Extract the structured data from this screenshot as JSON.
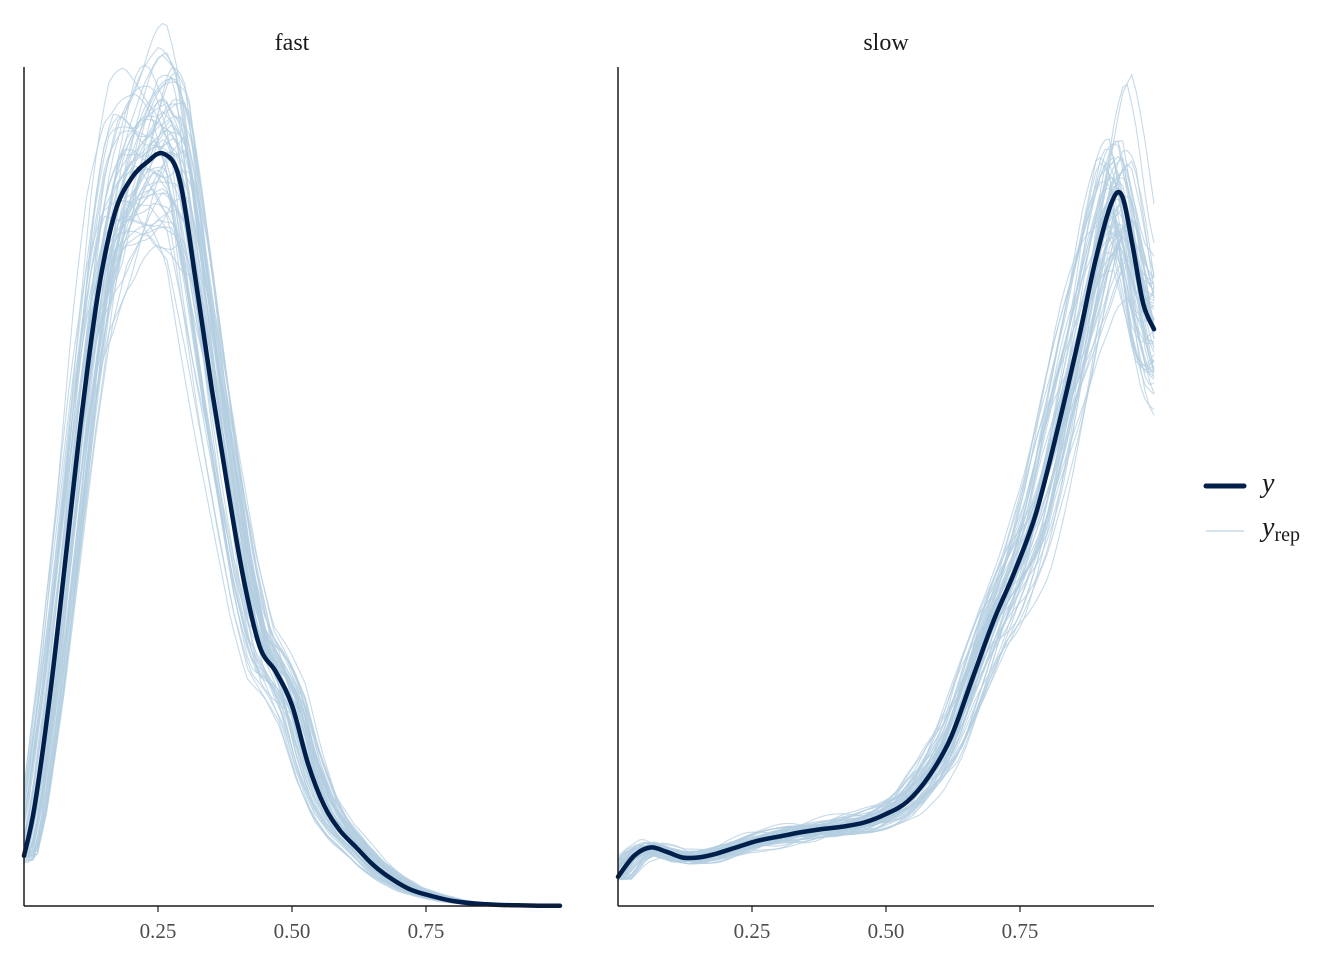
{
  "chart_data": [
    {
      "type": "line",
      "panel": "fast",
      "xticks": [
        0.25,
        0.5,
        0.75
      ],
      "xtick_labels": [
        "0.25",
        "0.50",
        "0.75"
      ],
      "xlim": [
        0.0,
        1.0
      ],
      "ylim": [
        0,
        1
      ],
      "series": [
        {
          "name": "y",
          "color": "#011f4b",
          "x": [
            0.0,
            0.02,
            0.05,
            0.08,
            0.11,
            0.14,
            0.17,
            0.2,
            0.23,
            0.26,
            0.29,
            0.32,
            0.35,
            0.38,
            0.41,
            0.44,
            0.47,
            0.5,
            0.53,
            0.56,
            0.59,
            0.62,
            0.65,
            0.68,
            0.72,
            0.76,
            0.8,
            0.84,
            0.88,
            0.92,
            0.96,
            1.0
          ],
          "y": [
            0.06,
            0.12,
            0.26,
            0.43,
            0.6,
            0.74,
            0.83,
            0.87,
            0.89,
            0.9,
            0.87,
            0.75,
            0.62,
            0.5,
            0.39,
            0.31,
            0.28,
            0.24,
            0.17,
            0.12,
            0.09,
            0.07,
            0.05,
            0.035,
            0.02,
            0.012,
            0.006,
            0.003,
            0.0015,
            0.0008,
            0.0004,
            0.0002
          ]
        }
      ]
    },
    {
      "type": "line",
      "panel": "slow",
      "xticks": [
        0.25,
        0.5,
        0.75
      ],
      "xtick_labels": [
        "0.25",
        "0.50",
        "0.75"
      ],
      "xlim": [
        0.0,
        1.0
      ],
      "ylim": [
        0,
        1
      ],
      "series": [
        {
          "name": "y",
          "color": "#011f4b",
          "x": [
            0.0,
            0.03,
            0.06,
            0.09,
            0.12,
            0.15,
            0.18,
            0.22,
            0.26,
            0.3,
            0.34,
            0.38,
            0.42,
            0.46,
            0.5,
            0.54,
            0.58,
            0.62,
            0.66,
            0.7,
            0.74,
            0.78,
            0.82,
            0.86,
            0.89,
            0.92,
            0.94,
            0.96,
            0.98,
            1.0
          ],
          "y": [
            0.035,
            0.06,
            0.07,
            0.065,
            0.058,
            0.058,
            0.062,
            0.07,
            0.078,
            0.083,
            0.088,
            0.092,
            0.095,
            0.1,
            0.11,
            0.125,
            0.155,
            0.2,
            0.27,
            0.34,
            0.4,
            0.47,
            0.57,
            0.68,
            0.77,
            0.84,
            0.85,
            0.79,
            0.72,
            0.69
          ]
        }
      ]
    }
  ],
  "legend": {
    "items": [
      {
        "label": "y",
        "color": "#011f4b"
      },
      {
        "label": "y",
        "sub": "rep",
        "color": "#b3cde0"
      }
    ],
    "position": "right"
  },
  "panels": {
    "left_title": "fast",
    "right_title": "slow"
  }
}
